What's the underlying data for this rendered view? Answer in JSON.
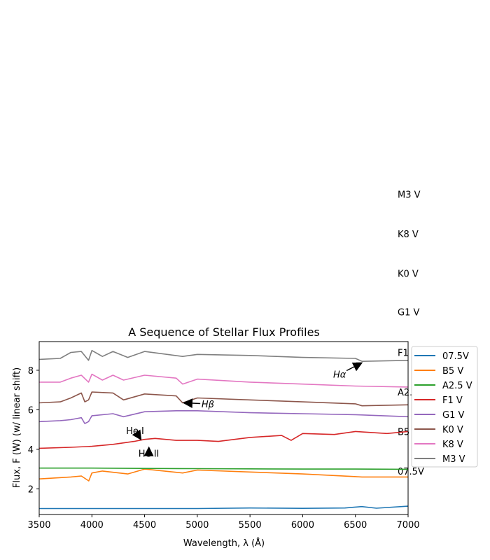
{
  "chart_data": {
    "type": "line",
    "title": "A Sequence of Stellar Flux Profiles",
    "xlabel": "Wavelength, λ (Å)",
    "ylabel": "Flux, F (W) (w/ linear shift)",
    "xlim": [
      3500,
      7000
    ],
    "ylim": [
      0.7,
      9.45
    ],
    "xticks": [
      "3500",
      "4000",
      "4500",
      "5000",
      "5500",
      "6000",
      "6500",
      "7000"
    ],
    "yticks": [
      "2",
      "4",
      "6",
      "8"
    ],
    "grid": false,
    "legend_position": "right, outside plot",
    "series": [
      {
        "name": "07.5V",
        "color": "#1f77b4",
        "x": [
          3500,
          4000,
          4500,
          5000,
          5500,
          6000,
          6400,
          6560,
          6700,
          7000
        ],
        "y": [
          1.0,
          1.0,
          1.0,
          1.0,
          1.03,
          1.01,
          1.03,
          1.1,
          1.02,
          1.12
        ]
      },
      {
        "name": "B5 V",
        "color": "#ff7f0e",
        "x": [
          3500,
          3650,
          3800,
          3900,
          3970,
          4000,
          4100,
          4340,
          4500,
          4861,
          5000,
          5500,
          6000,
          6563,
          7000
        ],
        "y": [
          2.5,
          2.55,
          2.6,
          2.65,
          2.4,
          2.8,
          2.9,
          2.75,
          3.0,
          2.8,
          2.95,
          2.85,
          2.75,
          2.6,
          2.6
        ]
      },
      {
        "name": "A2.5 V",
        "color": "#2ca02c",
        "x": [
          3500,
          4000,
          4500,
          5000,
          5500,
          6000,
          6500,
          7000
        ],
        "y": [
          3.05,
          3.05,
          3.03,
          3.02,
          3.01,
          3.0,
          3.0,
          2.99
        ]
      },
      {
        "name": "F1 V",
        "color": "#d62728",
        "x": [
          3500,
          3800,
          4000,
          4200,
          4400,
          4500,
          4600,
          4800,
          5000,
          5200,
          5500,
          5800,
          5890,
          6000,
          6300,
          6500,
          6800,
          7000
        ],
        "y": [
          4.05,
          4.1,
          4.15,
          4.25,
          4.4,
          4.5,
          4.55,
          4.45,
          4.45,
          4.4,
          4.6,
          4.7,
          4.45,
          4.8,
          4.75,
          4.9,
          4.8,
          4.9
        ]
      },
      {
        "name": "G1 V",
        "color": "#9467bd",
        "x": [
          3500,
          3700,
          3800,
          3900,
          3933,
          3968,
          4000,
          4200,
          4300,
          4500,
          4800,
          5000,
          5500,
          6000,
          6500,
          7000
        ],
        "y": [
          5.4,
          5.45,
          5.5,
          5.6,
          5.3,
          5.4,
          5.7,
          5.8,
          5.65,
          5.9,
          5.95,
          5.95,
          5.85,
          5.8,
          5.75,
          5.65
        ]
      },
      {
        "name": "K0 V",
        "color": "#8c564b",
        "x": [
          3500,
          3700,
          3800,
          3900,
          3933,
          3968,
          4000,
          4200,
          4300,
          4500,
          4800,
          4861,
          5000,
          5500,
          6000,
          6500,
          6563,
          7000
        ],
        "y": [
          6.35,
          6.4,
          6.6,
          6.85,
          6.4,
          6.5,
          6.9,
          6.85,
          6.5,
          6.8,
          6.7,
          6.35,
          6.6,
          6.5,
          6.4,
          6.3,
          6.2,
          6.25
        ]
      },
      {
        "name": "K8 V",
        "color": "#e377c2",
        "x": [
          3500,
          3700,
          3800,
          3900,
          3968,
          4000,
          4100,
          4200,
          4300,
          4500,
          4800,
          4861,
          5000,
          5500,
          6000,
          6500,
          7000
        ],
        "y": [
          7.4,
          7.4,
          7.6,
          7.75,
          7.4,
          7.8,
          7.5,
          7.75,
          7.5,
          7.75,
          7.6,
          7.3,
          7.55,
          7.4,
          7.3,
          7.2,
          7.15
        ]
      },
      {
        "name": "M3 V",
        "color": "#7f7f7f",
        "x": [
          3500,
          3700,
          3800,
          3900,
          3968,
          4000,
          4100,
          4200,
          4340,
          4500,
          4861,
          5000,
          5500,
          6000,
          6500,
          6563,
          7000
        ],
        "y": [
          8.55,
          8.6,
          8.9,
          8.95,
          8.5,
          9.0,
          8.7,
          8.95,
          8.65,
          8.95,
          8.7,
          8.8,
          8.75,
          8.65,
          8.6,
          8.45,
          8.5
        ]
      }
    ],
    "side_labels": [
      {
        "text": "M3 V",
        "y": 16.9
      },
      {
        "text": "K8 V",
        "y": 14.9
      },
      {
        "text": "K0 V",
        "y": 12.9
      },
      {
        "text": "G1 V",
        "y": 10.95
      },
      {
        "text": "F1 V",
        "y": 8.9
      },
      {
        "text": "A2.5 V",
        "y": 6.9
      },
      {
        "text": "B5 V",
        "y": 4.9
      },
      {
        "text": "07.5V",
        "y": 2.9
      }
    ],
    "annotations": [
      {
        "text": "Hα",
        "x_text": 6350,
        "y_text": 7.8,
        "x_arrow": 6570,
        "y_arrow": 8.4
      },
      {
        "text": "Hβ",
        "x_text": 5100,
        "y_text": 6.3,
        "x_arrow": 4861,
        "y_arrow": 6.35
      },
      {
        "text": "He I",
        "x_text": 4410,
        "y_text": 4.95,
        "x_arrow": 4471,
        "y_arrow": 4.45
      },
      {
        "text": "He II",
        "x_text": 4540,
        "y_text": 3.8,
        "x_arrow": 4541,
        "y_arrow": 4.15
      }
    ]
  }
}
